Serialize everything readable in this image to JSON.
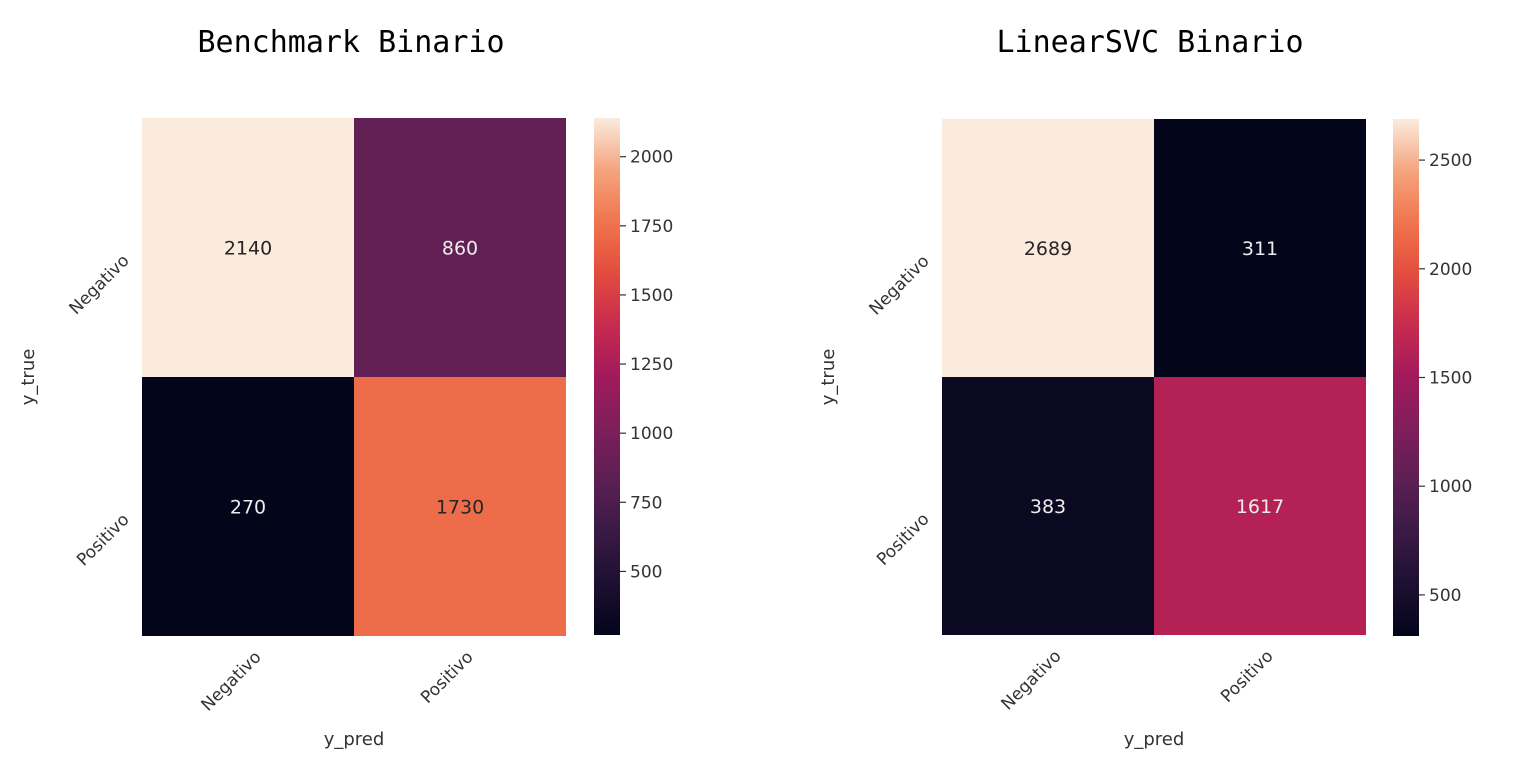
{
  "chart_data": [
    {
      "type": "heatmap",
      "title": "Benchmark Binario",
      "xlabel": "y_pred",
      "ylabel": "y_true",
      "x_categories": [
        "Negativo",
        "Positivo"
      ],
      "y_categories": [
        "Negativo",
        "Positivo"
      ],
      "values": [
        [
          2140,
          860
        ],
        [
          270,
          1730
        ]
      ],
      "colorbar": {
        "range": [
          270,
          2140
        ],
        "ticks": [
          500,
          750,
          1000,
          1250,
          1500,
          1750,
          2000
        ],
        "colormap": "rocket"
      }
    },
    {
      "type": "heatmap",
      "title": "LinearSVC Binario",
      "xlabel": "y_pred",
      "ylabel": "y_true",
      "x_categories": [
        "Negativo",
        "Positivo"
      ],
      "y_categories": [
        "Negativo",
        "Positivo"
      ],
      "values": [
        [
          2689,
          311
        ],
        [
          383,
          1617
        ]
      ],
      "colorbar": {
        "range": [
          311,
          2689
        ],
        "ticks": [
          500,
          1000,
          1500,
          2000,
          2500
        ],
        "colormap": "rocket"
      }
    }
  ]
}
